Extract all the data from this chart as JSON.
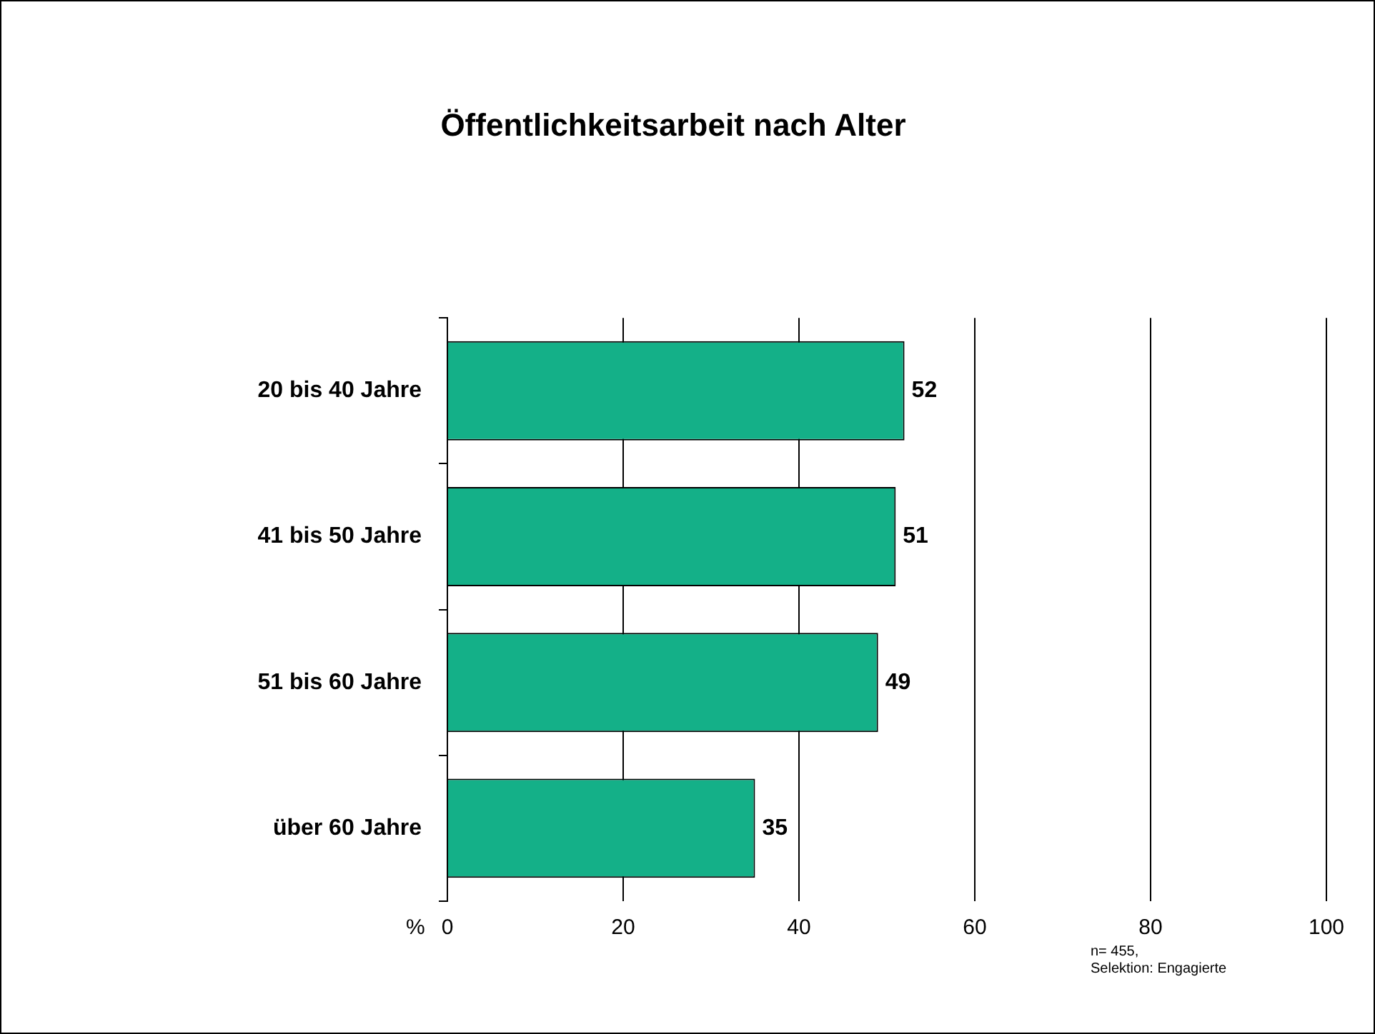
{
  "chart_data": {
    "type": "bar",
    "orientation": "horizontal",
    "title": "Öffentlichkeitsarbeit nach Alter",
    "xlabel": "%",
    "categories": [
      "20 bis 40 Jahre",
      "41 bis 50 Jahre",
      "51 bis 60 Jahre",
      "über 60 Jahre"
    ],
    "values": [
      52,
      51,
      49,
      35
    ],
    "color": "#14b088",
    "xlim": [
      0,
      100
    ],
    "xticks": [
      0,
      20,
      40,
      60,
      80,
      100
    ],
    "grid": "x",
    "data_labels": true,
    "legend": false,
    "annotations": [
      "n= 455,",
      "Selektion: Engagierte"
    ]
  }
}
